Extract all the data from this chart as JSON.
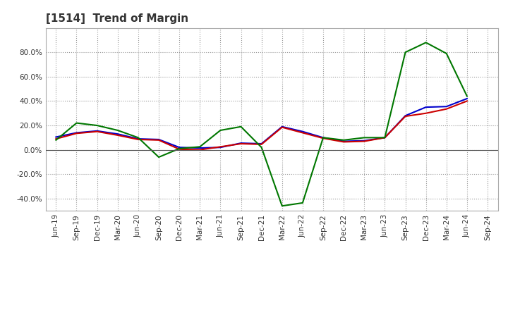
{
  "title": "[1514]  Trend of Margin",
  "x_labels": [
    "Jun-19",
    "Sep-19",
    "Dec-19",
    "Mar-20",
    "Jun-20",
    "Sep-20",
    "Dec-20",
    "Mar-21",
    "Jun-21",
    "Sep-21",
    "Dec-21",
    "Mar-22",
    "Jun-22",
    "Sep-22",
    "Dec-22",
    "Mar-23",
    "Jun-23",
    "Sep-23",
    "Dec-23",
    "Mar-24",
    "Jun-24",
    "Sep-24"
  ],
  "ordinary_income": [
    10.5,
    14.0,
    15.5,
    13.0,
    9.0,
    8.5,
    2.0,
    1.5,
    2.0,
    5.5,
    5.0,
    19.0,
    15.0,
    10.0,
    7.0,
    7.5,
    10.0,
    28.0,
    35.0,
    35.5,
    42.0,
    null
  ],
  "net_income": [
    9.0,
    13.5,
    15.0,
    12.0,
    8.5,
    8.0,
    0.5,
    0.0,
    2.5,
    5.0,
    4.5,
    18.5,
    14.0,
    9.5,
    6.5,
    7.0,
    10.0,
    27.5,
    30.0,
    33.5,
    40.0,
    null
  ],
  "operating_cashflow": [
    8.0,
    22.0,
    20.0,
    16.0,
    10.0,
    -6.0,
    1.0,
    2.5,
    16.0,
    19.0,
    2.0,
    -46.0,
    -43.5,
    10.0,
    8.0,
    10.0,
    10.0,
    80.0,
    88.0,
    79.0,
    44.0,
    null
  ],
  "colors": {
    "ordinary_income": "#0000cc",
    "net_income": "#cc0000",
    "operating_cashflow": "#007700"
  },
  "ylim": [
    -50,
    100
  ],
  "yticks": [
    -40.0,
    -20.0,
    0.0,
    20.0,
    40.0,
    60.0,
    80.0
  ],
  "background_color": "#ffffff",
  "grid_color": "#999999",
  "line_width": 1.5,
  "title_color": "#333333",
  "title_fontsize": 11,
  "legend_fontsize": 8.5,
  "tick_fontsize": 7.5
}
